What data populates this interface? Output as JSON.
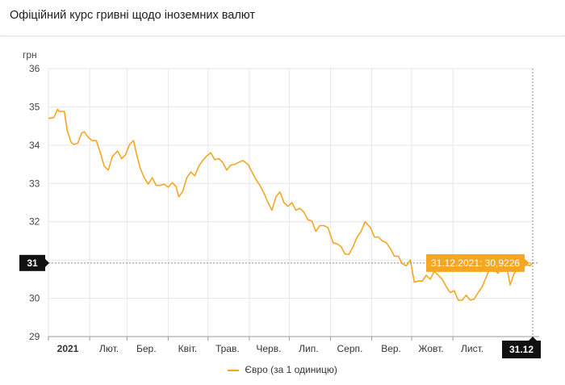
{
  "page": {
    "title": "Офіційний курс гривні щодо іноземних валют"
  },
  "chart_data": {
    "type": "line",
    "ylabel": "грн",
    "ylim": [
      29,
      36
    ],
    "yticks": [
      29,
      30,
      31,
      32,
      33,
      34,
      35,
      36
    ],
    "xlim": [
      "2021-01-01",
      "2021-12-31"
    ],
    "xticks": [
      {
        "date": "2021-01-01",
        "label": "2021"
      },
      {
        "date": "2021-02-01",
        "label": "Лют."
      },
      {
        "date": "2021-03-01",
        "label": "Бер."
      },
      {
        "date": "2021-04-01",
        "label": "Квіт."
      },
      {
        "date": "2021-05-01",
        "label": "Трав."
      },
      {
        "date": "2021-06-01",
        "label": "Черв."
      },
      {
        "date": "2021-07-01",
        "label": "Лип."
      },
      {
        "date": "2021-08-01",
        "label": "Серп."
      },
      {
        "date": "2021-09-01",
        "label": "Вер."
      },
      {
        "date": "2021-10-01",
        "label": "Жовт."
      },
      {
        "date": "2021-11-01",
        "label": "Лист."
      }
    ],
    "grid": true,
    "legend_position": "bottom",
    "series": [
      {
        "name": "Євро (за 1 одиницю)",
        "color": "#f5a623",
        "points": [
          [
            "2021-01-01",
            34.7
          ],
          [
            "2021-01-05",
            34.72
          ],
          [
            "2021-01-08",
            34.94
          ],
          [
            "2021-01-09",
            34.88
          ],
          [
            "2021-01-13",
            34.88
          ],
          [
            "2021-01-15",
            34.4
          ],
          [
            "2021-01-18",
            34.08
          ],
          [
            "2021-01-20",
            34.02
          ],
          [
            "2021-01-23",
            34.05
          ],
          [
            "2021-01-26",
            34.32
          ],
          [
            "2021-01-28",
            34.35
          ],
          [
            "2021-01-31",
            34.2
          ],
          [
            "2021-02-03",
            34.12
          ],
          [
            "2021-02-06",
            34.12
          ],
          [
            "2021-02-09",
            33.8
          ],
          [
            "2021-02-12",
            33.45
          ],
          [
            "2021-02-15",
            33.35
          ],
          [
            "2021-02-18",
            33.7
          ],
          [
            "2021-02-22",
            33.85
          ],
          [
            "2021-02-25",
            33.65
          ],
          [
            "2021-02-28",
            33.75
          ],
          [
            "2021-03-03",
            34.02
          ],
          [
            "2021-03-06",
            34.12
          ],
          [
            "2021-03-08",
            33.8
          ],
          [
            "2021-03-11",
            33.4
          ],
          [
            "2021-03-14",
            33.15
          ],
          [
            "2021-03-17",
            32.98
          ],
          [
            "2021-03-20",
            33.15
          ],
          [
            "2021-03-23",
            32.95
          ],
          [
            "2021-03-26",
            32.95
          ],
          [
            "2021-03-29",
            32.98
          ],
          [
            "2021-04-01",
            32.9
          ],
          [
            "2021-04-04",
            33.02
          ],
          [
            "2021-04-07",
            32.92
          ],
          [
            "2021-04-09",
            32.65
          ],
          [
            "2021-04-12",
            32.8
          ],
          [
            "2021-04-15",
            33.15
          ],
          [
            "2021-04-18",
            33.3
          ],
          [
            "2021-04-21",
            33.2
          ],
          [
            "2021-04-24",
            33.45
          ],
          [
            "2021-04-27",
            33.6
          ],
          [
            "2021-04-30",
            33.72
          ],
          [
            "2021-05-03",
            33.8
          ],
          [
            "2021-05-06",
            33.62
          ],
          [
            "2021-05-09",
            33.65
          ],
          [
            "2021-05-12",
            33.55
          ],
          [
            "2021-05-15",
            33.35
          ],
          [
            "2021-05-18",
            33.48
          ],
          [
            "2021-05-21",
            33.5
          ],
          [
            "2021-05-24",
            33.55
          ],
          [
            "2021-05-27",
            33.6
          ],
          [
            "2021-05-31",
            33.5
          ],
          [
            "2021-06-03",
            33.3
          ],
          [
            "2021-06-06",
            33.1
          ],
          [
            "2021-06-09",
            32.95
          ],
          [
            "2021-06-12",
            32.75
          ],
          [
            "2021-06-15",
            32.5
          ],
          [
            "2021-06-18",
            32.3
          ],
          [
            "2021-06-21",
            32.65
          ],
          [
            "2021-06-24",
            32.78
          ],
          [
            "2021-06-27",
            32.5
          ],
          [
            "2021-06-30",
            32.4
          ],
          [
            "2021-07-03",
            32.5
          ],
          [
            "2021-07-06",
            32.3
          ],
          [
            "2021-07-09",
            32.35
          ],
          [
            "2021-07-12",
            32.25
          ],
          [
            "2021-07-15",
            32.05
          ],
          [
            "2021-07-18",
            32.02
          ],
          [
            "2021-07-21",
            31.75
          ],
          [
            "2021-07-24",
            31.9
          ],
          [
            "2021-07-27",
            31.9
          ],
          [
            "2021-07-30",
            31.85
          ],
          [
            "2021-08-03",
            31.45
          ],
          [
            "2021-08-06",
            31.42
          ],
          [
            "2021-08-09",
            31.35
          ],
          [
            "2021-08-12",
            31.15
          ],
          [
            "2021-08-15",
            31.15
          ],
          [
            "2021-08-18",
            31.35
          ],
          [
            "2021-08-21",
            31.6
          ],
          [
            "2021-08-24",
            31.75
          ],
          [
            "2021-08-27",
            32.0
          ],
          [
            "2021-08-31",
            31.85
          ],
          [
            "2021-09-03",
            31.6
          ],
          [
            "2021-09-06",
            31.6
          ],
          [
            "2021-09-09",
            31.5
          ],
          [
            "2021-09-12",
            31.45
          ],
          [
            "2021-09-15",
            31.3
          ],
          [
            "2021-09-18",
            31.1
          ],
          [
            "2021-09-21",
            31.1
          ],
          [
            "2021-09-24",
            30.9
          ],
          [
            "2021-09-27",
            30.85
          ],
          [
            "2021-09-30",
            31.0
          ],
          [
            "2021-10-03",
            30.42
          ],
          [
            "2021-10-06",
            30.45
          ],
          [
            "2021-10-09",
            30.45
          ],
          [
            "2021-10-12",
            30.6
          ],
          [
            "2021-10-15",
            30.5
          ],
          [
            "2021-10-18",
            30.7
          ],
          [
            "2021-10-21",
            30.6
          ],
          [
            "2021-10-24",
            30.5
          ],
          [
            "2021-10-27",
            30.3
          ],
          [
            "2021-10-30",
            30.15
          ],
          [
            "2021-11-02",
            30.2
          ],
          [
            "2021-11-05",
            29.95
          ],
          [
            "2021-11-08",
            29.95
          ],
          [
            "2021-11-11",
            30.08
          ],
          [
            "2021-11-14",
            29.95
          ],
          [
            "2021-11-17",
            29.98
          ],
          [
            "2021-11-20",
            30.15
          ],
          [
            "2021-11-23",
            30.3
          ],
          [
            "2021-11-26",
            30.55
          ],
          [
            "2021-11-29",
            30.8
          ],
          [
            "2021-12-02",
            30.75
          ],
          [
            "2021-12-05",
            30.65
          ],
          [
            "2021-12-08",
            30.88
          ],
          [
            "2021-12-11",
            30.92
          ],
          [
            "2021-12-14",
            30.35
          ],
          [
            "2021-12-17",
            30.65
          ],
          [
            "2021-12-20",
            30.78
          ],
          [
            "2021-12-23",
            30.9
          ],
          [
            "2021-12-26",
            30.88
          ],
          [
            "2021-12-29",
            30.85
          ],
          [
            "2021-12-31",
            30.9226
          ]
        ]
      }
    ],
    "crosshair": {
      "date": "2021-12-31",
      "value": 30.9226,
      "y_label": "31",
      "x_label": "31.12",
      "tooltip": "31.12.2021: 30,9226"
    }
  }
}
